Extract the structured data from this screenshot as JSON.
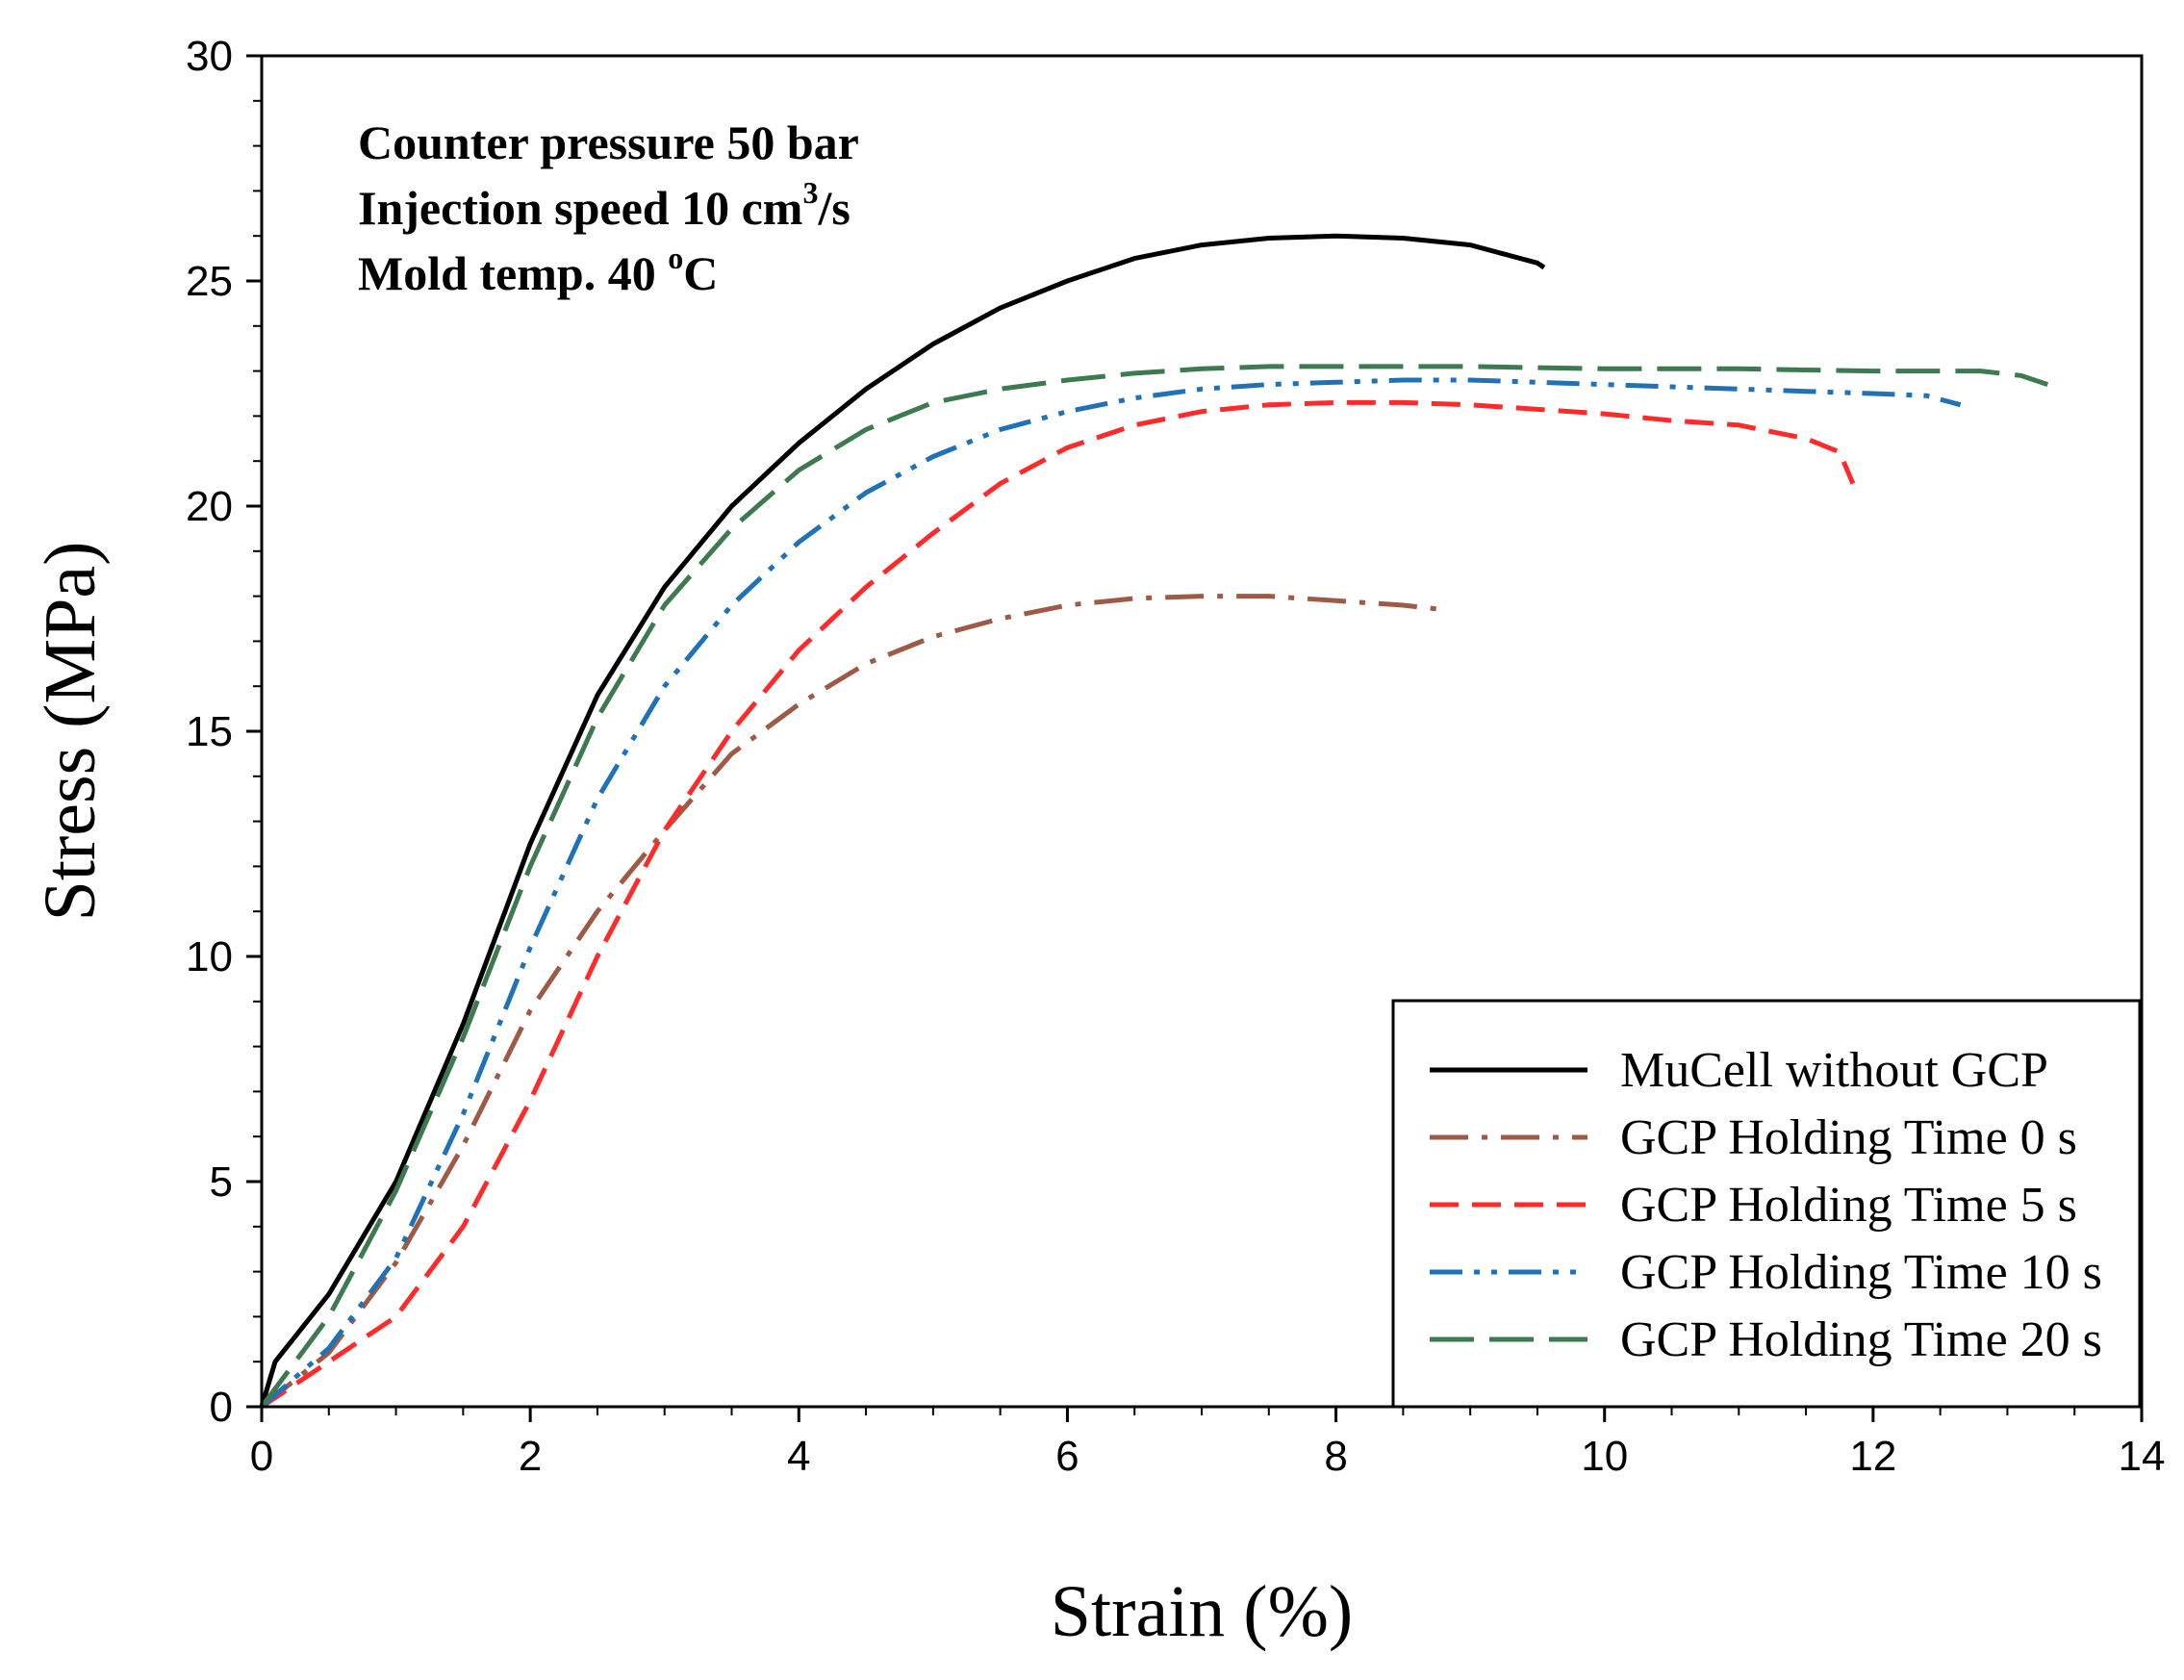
{
  "chart_data": {
    "type": "line",
    "xlabel": "Strain (%)",
    "ylabel": "Stress (MPa)",
    "xlim": [
      0,
      14
    ],
    "ylim": [
      0,
      30
    ],
    "x_ticks": [
      "0",
      "2",
      "4",
      "6",
      "8",
      "10",
      "12",
      "14"
    ],
    "y_ticks": [
      "0",
      "5",
      "10",
      "15",
      "20",
      "25",
      "30"
    ],
    "annotations": {
      "line1": "Counter pressure 50 bar",
      "line2_prefix": "Injection speed 10 cm",
      "line2_sup": "3",
      "line2_suffix": "/s",
      "line3_prefix": "Mold temp. 40 ",
      "line3_sup": "o",
      "line3_suffix": "C"
    },
    "legend_position": "bottom-right",
    "series": [
      {
        "name": "MuCell without GCP",
        "color": "#000000",
        "style": "solid",
        "points": [
          [
            0,
            0
          ],
          [
            0.1,
            1.0
          ],
          [
            0.5,
            2.5
          ],
          [
            1.0,
            5.0
          ],
          [
            1.5,
            8.5
          ],
          [
            2.0,
            12.5
          ],
          [
            2.5,
            15.8
          ],
          [
            3.0,
            18.2
          ],
          [
            3.5,
            20.0
          ],
          [
            4.0,
            21.4
          ],
          [
            4.5,
            22.6
          ],
          [
            5.0,
            23.6
          ],
          [
            5.5,
            24.4
          ],
          [
            6.0,
            25.0
          ],
          [
            6.5,
            25.5
          ],
          [
            7.0,
            25.8
          ],
          [
            7.5,
            25.95
          ],
          [
            8.0,
            26.0
          ],
          [
            8.5,
            25.95
          ],
          [
            9.0,
            25.8
          ],
          [
            9.5,
            25.4
          ],
          [
            9.55,
            25.3
          ]
        ]
      },
      {
        "name": "GCP Holding Time 0 s",
        "color": "#9e5a45",
        "style": "dashdot",
        "points": [
          [
            0,
            0
          ],
          [
            0.5,
            1.2
          ],
          [
            1.0,
            3.2
          ],
          [
            1.5,
            5.8
          ],
          [
            2.0,
            8.8
          ],
          [
            2.5,
            11.0
          ],
          [
            3.0,
            12.8
          ],
          [
            3.5,
            14.5
          ],
          [
            4.0,
            15.6
          ],
          [
            4.5,
            16.5
          ],
          [
            5.0,
            17.1
          ],
          [
            5.5,
            17.5
          ],
          [
            6.0,
            17.8
          ],
          [
            6.5,
            17.95
          ],
          [
            7.0,
            18.0
          ],
          [
            7.5,
            18.0
          ],
          [
            8.0,
            17.9
          ],
          [
            8.5,
            17.8
          ],
          [
            8.8,
            17.7
          ]
        ]
      },
      {
        "name": "GCP Holding Time 5 s",
        "color": "#ff2a2a",
        "style": "dashed",
        "points": [
          [
            0,
            0
          ],
          [
            0.5,
            1.0
          ],
          [
            1.0,
            2.0
          ],
          [
            1.5,
            4.0
          ],
          [
            2.0,
            6.8
          ],
          [
            2.5,
            10.0
          ],
          [
            3.0,
            12.8
          ],
          [
            3.5,
            15.0
          ],
          [
            4.0,
            16.8
          ],
          [
            4.5,
            18.2
          ],
          [
            5.0,
            19.4
          ],
          [
            5.5,
            20.5
          ],
          [
            6.0,
            21.3
          ],
          [
            6.5,
            21.8
          ],
          [
            7.0,
            22.1
          ],
          [
            7.5,
            22.25
          ],
          [
            8.0,
            22.3
          ],
          [
            8.5,
            22.3
          ],
          [
            9.0,
            22.25
          ],
          [
            9.5,
            22.15
          ],
          [
            10.0,
            22.05
          ],
          [
            10.5,
            21.9
          ],
          [
            11.0,
            21.8
          ],
          [
            11.5,
            21.5
          ],
          [
            11.75,
            21.2
          ],
          [
            11.85,
            20.5
          ]
        ]
      },
      {
        "name": "GCP Holding Time 10 s",
        "color": "#1f72b8",
        "style": "dashdotdot",
        "points": [
          [
            0,
            0
          ],
          [
            0.5,
            1.3
          ],
          [
            1.0,
            3.3
          ],
          [
            1.5,
            6.5
          ],
          [
            2.0,
            10.2
          ],
          [
            2.5,
            13.5
          ],
          [
            3.0,
            16.0
          ],
          [
            3.5,
            17.8
          ],
          [
            4.0,
            19.2
          ],
          [
            4.5,
            20.3
          ],
          [
            5.0,
            21.1
          ],
          [
            5.5,
            21.7
          ],
          [
            6.0,
            22.1
          ],
          [
            6.5,
            22.4
          ],
          [
            7.0,
            22.6
          ],
          [
            7.5,
            22.7
          ],
          [
            8.0,
            22.75
          ],
          [
            8.5,
            22.8
          ],
          [
            9.0,
            22.8
          ],
          [
            9.5,
            22.75
          ],
          [
            10.0,
            22.7
          ],
          [
            10.5,
            22.65
          ],
          [
            11.0,
            22.6
          ],
          [
            11.5,
            22.55
          ],
          [
            12.0,
            22.5
          ],
          [
            12.4,
            22.45
          ],
          [
            12.65,
            22.25
          ]
        ]
      },
      {
        "name": "GCP Holding Time 20 s",
        "color": "#3e7a50",
        "style": "longdash",
        "points": [
          [
            0,
            0
          ],
          [
            0.5,
            2.0
          ],
          [
            1.0,
            4.8
          ],
          [
            1.5,
            8.2
          ],
          [
            2.0,
            12.0
          ],
          [
            2.5,
            15.3
          ],
          [
            3.0,
            17.8
          ],
          [
            3.5,
            19.5
          ],
          [
            4.0,
            20.8
          ],
          [
            4.5,
            21.7
          ],
          [
            5.0,
            22.3
          ],
          [
            5.5,
            22.6
          ],
          [
            6.0,
            22.8
          ],
          [
            6.5,
            22.95
          ],
          [
            7.0,
            23.05
          ],
          [
            7.5,
            23.1
          ],
          [
            8.0,
            23.1
          ],
          [
            9.0,
            23.1
          ],
          [
            10.0,
            23.05
          ],
          [
            11.0,
            23.05
          ],
          [
            12.0,
            23.0
          ],
          [
            12.8,
            23.0
          ],
          [
            13.1,
            22.9
          ],
          [
            13.3,
            22.7
          ]
        ]
      }
    ]
  }
}
